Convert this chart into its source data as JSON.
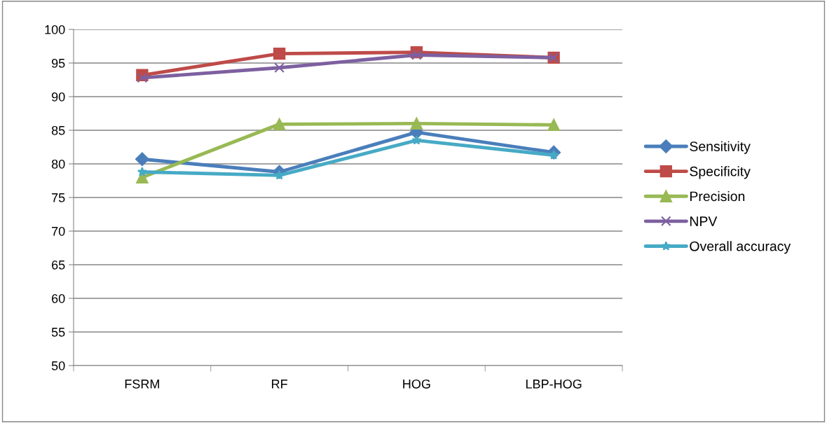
{
  "chart_data": {
    "type": "line",
    "categories": [
      "FSRM",
      "RF",
      "HOG",
      "LBP-HOG"
    ],
    "series": [
      {
        "name": "Sensitivity",
        "color": "#4a7ebb",
        "marker": "diamond",
        "values": [
          80.7,
          78.8,
          84.7,
          81.7
        ]
      },
      {
        "name": "Specificity",
        "color": "#be4b48",
        "marker": "square",
        "values": [
          93.2,
          96.4,
          96.6,
          95.8
        ]
      },
      {
        "name": "Precision",
        "color": "#98b954",
        "marker": "triangle",
        "values": [
          78.0,
          85.9,
          86.0,
          85.8
        ]
      },
      {
        "name": "NPV",
        "color": "#7d60a0",
        "marker": "cross",
        "values": [
          92.8,
          94.3,
          96.2,
          95.8
        ]
      },
      {
        "name": "Overall accuracy",
        "color": "#46aac5",
        "marker": "star",
        "values": [
          78.8,
          78.3,
          83.5,
          81.3
        ]
      }
    ],
    "ylim": [
      50,
      100
    ],
    "yticks": [
      50,
      55,
      60,
      65,
      70,
      75,
      80,
      85,
      90,
      95,
      100
    ],
    "grid": "y",
    "legend": "right",
    "line_style": "solid"
  }
}
